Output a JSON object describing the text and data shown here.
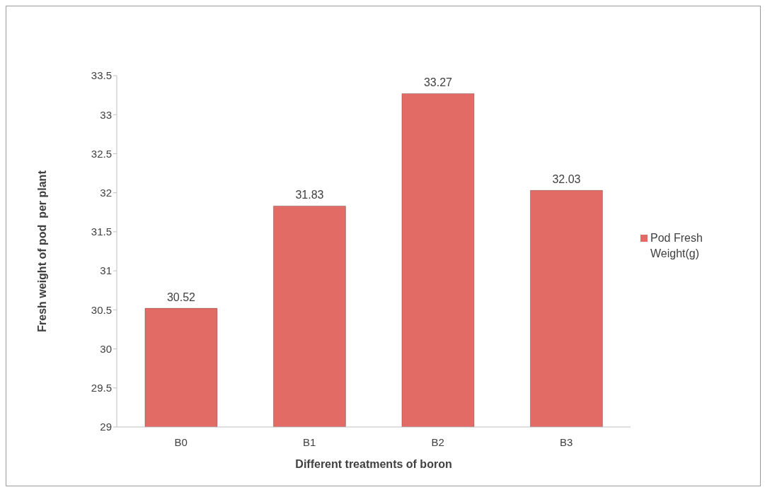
{
  "chart_data": {
    "type": "bar",
    "xlabel": "Different treatments of boron",
    "ylabel": "Fresh weight of pod  per plant",
    "categories": [
      "B0",
      "B1",
      "B2",
      "B3"
    ],
    "series": [
      {
        "name": "Pod Fresh Weight(g)",
        "color": "#e36b65",
        "values": [
          30.52,
          31.83,
          33.27,
          32.03
        ]
      }
    ],
    "ylim": [
      29,
      33.5
    ],
    "yticks": [
      29,
      29.5,
      30,
      30.5,
      31,
      31.5,
      32,
      32.5,
      33,
      33.5
    ],
    "data_labels": true,
    "legend": "right"
  }
}
